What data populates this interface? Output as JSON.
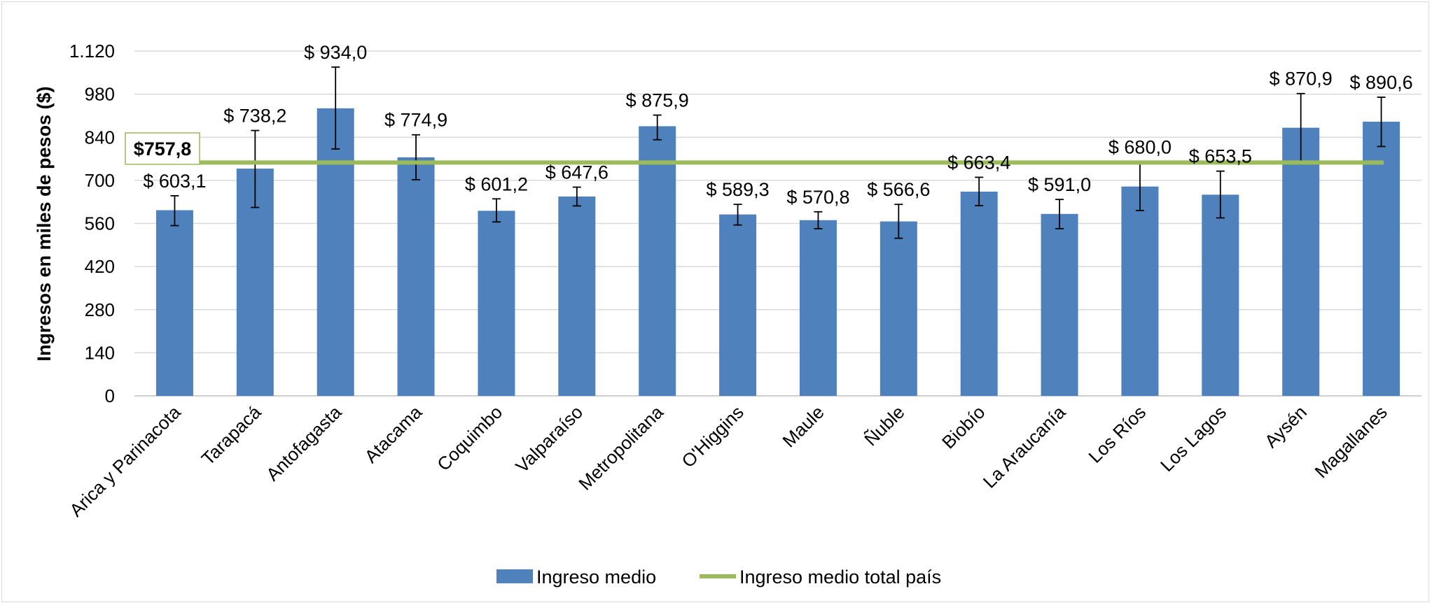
{
  "chart_data": {
    "type": "bar",
    "ylabel": "Ingresos en miles de pesos ($)",
    "xlabel": "",
    "title": "",
    "ylim": [
      0,
      1120
    ],
    "yticks": [
      0,
      140,
      280,
      420,
      560,
      700,
      840,
      980,
      1120
    ],
    "ytick_labels": [
      "0",
      "140",
      "280",
      "420",
      "560",
      "700",
      "840",
      "980",
      "1.120"
    ],
    "grid": true,
    "legend_position": "bottom",
    "categories": [
      "Arica y Parinacota",
      "Tarapacá",
      "Antofagasta",
      "Atacama",
      "Coquimbo",
      "Valparaíso",
      "Metropolitana",
      "O'Higgins",
      "Maule",
      "Ñuble",
      "Biobío",
      "La Araucanía",
      "Los Ríos",
      "Los Lagos",
      "Aysén",
      "Magallanes"
    ],
    "series": [
      {
        "name": "Ingreso medio",
        "type": "bar",
        "color": "#4f81bd",
        "values": [
          603.1,
          738.2,
          934.0,
          774.9,
          601.2,
          647.6,
          875.9,
          589.3,
          570.8,
          566.6,
          663.4,
          591.0,
          680.0,
          653.5,
          870.9,
          890.6
        ],
        "labels": [
          "$ 603,1",
          "$ 738,2",
          "$ 934,0",
          "$ 774,9",
          "$ 601,2",
          "$ 647,6",
          "$ 875,9",
          "$ 589,3",
          "$ 570,8",
          "$ 566,6",
          "$ 663,4",
          "$ 591,0",
          "$ 680,0",
          "$ 653,5",
          "$ 870,9",
          "$ 890,6"
        ],
        "error_low": [
          553,
          612,
          802,
          702,
          565,
          617,
          832,
          555,
          543,
          512,
          618,
          543,
          602,
          578,
          760,
          810
        ],
        "error_high": [
          650,
          862,
          1068,
          848,
          640,
          678,
          912,
          622,
          598,
          622,
          710,
          638,
          760,
          730,
          982,
          970
        ]
      },
      {
        "name": "Ingreso medio total país",
        "type": "line",
        "color": "#9bbb59",
        "value": 757.8,
        "label": "$757,8"
      }
    ]
  }
}
